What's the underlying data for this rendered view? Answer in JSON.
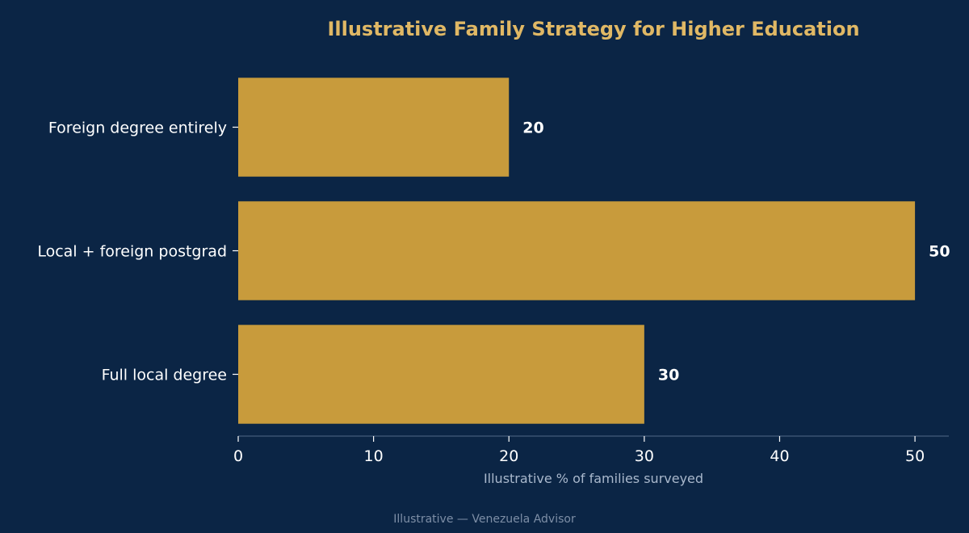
{
  "colors": {
    "background": "#0b2545",
    "bar": "#c89b3c",
    "title": "#e0b865",
    "text": "#ffffff",
    "axis_label": "#a9b8cc",
    "footer": "#7d8ea6",
    "axis_line": "#3b5372"
  },
  "footer": "Illustrative — Venezuela Advisor",
  "chart_data": {
    "type": "bar",
    "orientation": "horizontal",
    "title": "Illustrative Family Strategy for Higher Education",
    "xlabel": "Illustrative % of families surveyed",
    "ylabel": "",
    "categories": [
      "Foreign degree entirely",
      "Local + foreign postgrad",
      "Full local degree"
    ],
    "values": [
      20,
      50,
      30
    ],
    "data_labels": [
      "20",
      "50",
      "30"
    ],
    "xlim": [
      0,
      52.5
    ],
    "xticks": [
      0,
      10,
      20,
      30,
      40,
      50
    ],
    "grid": false,
    "legend": "none"
  }
}
